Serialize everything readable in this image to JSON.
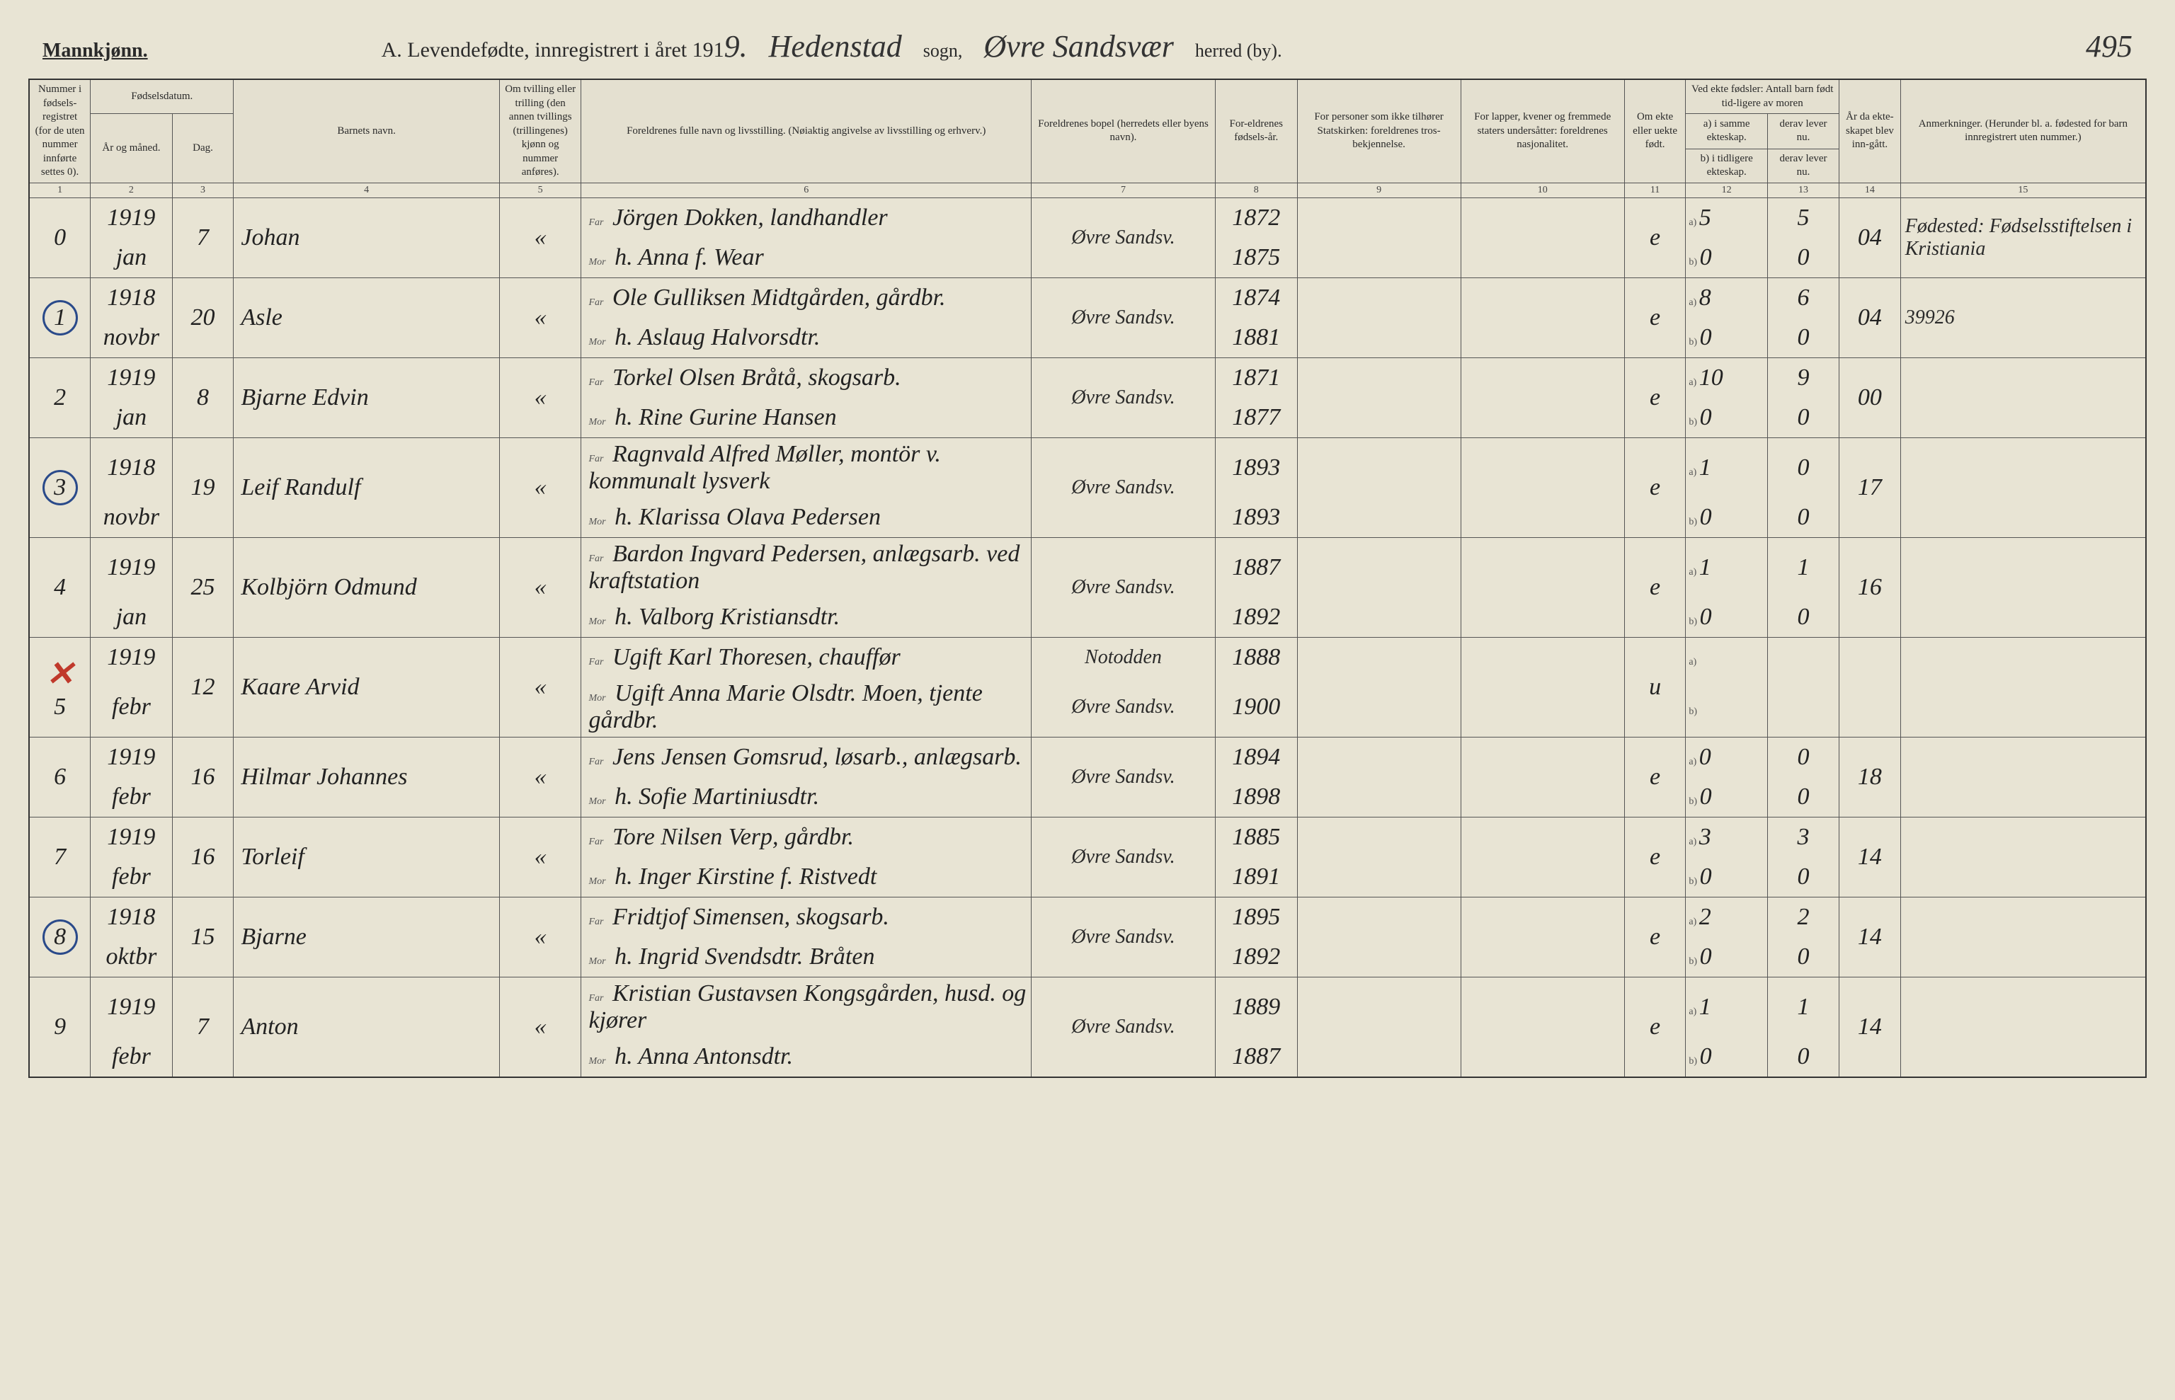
{
  "header": {
    "left_label": "Mannkjønn.",
    "center_title_prefix": "A.  Levendefødte, innregistrert i året 191",
    "year_digit": "9.",
    "sogn_name": "Hedenstad",
    "sogn_label": "sogn,",
    "herred_name": "Øvre Sandsvær",
    "herred_label": "herred (by).",
    "page_number": "495"
  },
  "columns": {
    "c1": "Nummer i fødsels-registret (for de uten nummer innførte settes 0).",
    "c2_top": "Fødselsdatum.",
    "c2a": "År og måned.",
    "c2b": "Dag.",
    "c4": "Barnets navn.",
    "c5": "Om tvilling eller trilling (den annen tvillings (trillingenes) kjønn og nummer anføres).",
    "c6": "Foreldrenes fulle navn og livsstilling. (Nøiaktig angivelse av livsstilling og erhverv.)",
    "c7": "Foreldrenes bopel (herredets eller byens navn).",
    "c8": "For-eldrenes fødsels-år.",
    "c9": "For personer som ikke tilhører Statskirken: foreldrenes tros-bekjennelse.",
    "c10": "For lapper, kvener og fremmede staters undersåtter: foreldrenes nasjonalitet.",
    "c11": "Om ekte eller uekte født.",
    "c12_top": "Ved ekte fødsler: Antall barn født tid-ligere av moren",
    "c12a": "a) i samme ekteskap.",
    "c12b": "b) i tidligere ekteskap.",
    "c13a": "derav lever nu.",
    "c13b": "derav lever nu.",
    "c14": "År da ekte-skapet blev inn-gått.",
    "c15": "Anmerkninger. (Herunder bl. a. fødested for barn innregistrert uten nummer.)"
  },
  "colnums": [
    "1",
    "2",
    "3",
    "4",
    "5",
    "6",
    "7",
    "8",
    "9",
    "10",
    "11",
    "12",
    "13",
    "14",
    "15"
  ],
  "rows": [
    {
      "num": "0",
      "circled": false,
      "red_x": false,
      "year": "1919",
      "month": "jan",
      "day": "7",
      "name": "Johan",
      "twin": "«",
      "far": "Jörgen Dokken, landhandler",
      "mor": "h. Anna f. Wear",
      "bopel": "Øvre Sandsv.",
      "far_year": "1872",
      "mor_year": "1875",
      "c9": "",
      "c10": "",
      "ekte": "e",
      "a12": "5",
      "a13": "5",
      "b12": "0",
      "b13": "0",
      "c14": "04",
      "anm": "Fødested: Fødselsstiftelsen i Kristiania"
    },
    {
      "num": "1",
      "circled": true,
      "red_x": false,
      "year": "1918",
      "month": "novbr",
      "day": "20",
      "name": "Asle",
      "twin": "«",
      "far": "Ole Gulliksen Midtgården, gårdbr.",
      "mor": "h. Aslaug Halvorsdtr.",
      "bopel": "Øvre Sandsv.",
      "far_year": "1874",
      "mor_year": "1881",
      "c9": "",
      "c10": "",
      "ekte": "e",
      "a12": "8",
      "a13": "6",
      "b12": "0",
      "b13": "0",
      "c14": "04",
      "anm": "39926"
    },
    {
      "num": "2",
      "circled": false,
      "red_x": false,
      "year": "1919",
      "month": "jan",
      "day": "8",
      "name": "Bjarne Edvin",
      "twin": "«",
      "far": "Torkel Olsen Bråtå, skogsarb.",
      "mor": "h. Rine Gurine Hansen",
      "bopel": "Øvre Sandsv.",
      "far_year": "1871",
      "mor_year": "1877",
      "c9": "",
      "c10": "",
      "ekte": "e",
      "a12": "10",
      "a13": "9",
      "b12": "0",
      "b13": "0",
      "c14": "00",
      "anm": ""
    },
    {
      "num": "3",
      "circled": true,
      "red_x": false,
      "year": "1918",
      "month": "novbr",
      "day": "19",
      "name": "Leif Randulf",
      "twin": "«",
      "far": "Ragnvald Alfred Møller, montör v. kommunalt lysverk",
      "mor": "h. Klarissa Olava Pedersen",
      "bopel": "Øvre Sandsv.",
      "far_year": "1893",
      "mor_year": "1893",
      "c9": "",
      "c10": "",
      "ekte": "e",
      "a12": "1",
      "a13": "0",
      "b12": "0",
      "b13": "0",
      "c14": "17",
      "anm": ""
    },
    {
      "num": "4",
      "circled": false,
      "red_x": false,
      "year": "1919",
      "month": "jan",
      "day": "25",
      "name": "Kolbjörn Odmund",
      "twin": "«",
      "far": "Bardon Ingvard Pedersen, anlægsarb. ved kraftstation",
      "mor": "h. Valborg Kristiansdtr.",
      "bopel": "Øvre Sandsv.",
      "far_year": "1887",
      "mor_year": "1892",
      "c9": "",
      "c10": "",
      "ekte": "e",
      "a12": "1",
      "a13": "1",
      "b12": "0",
      "b13": "0",
      "c14": "16",
      "anm": ""
    },
    {
      "num": "5",
      "circled": false,
      "red_x": true,
      "year": "1919",
      "month": "febr",
      "day": "12",
      "name": "Kaare Arvid",
      "twin": "«",
      "far": "Ugift Karl Thoresen, chauffør",
      "mor": "Ugift Anna Marie Olsdtr. Moen, tjente gårdbr.",
      "bopel": "Notodden",
      "bopel2": "Øvre Sandsv.",
      "far_year": "1888",
      "mor_year": "1900",
      "c9": "",
      "c10": "",
      "ekte": "u",
      "a12": "",
      "a13": "",
      "b12": "",
      "b13": "",
      "c14": "",
      "anm": ""
    },
    {
      "num": "6",
      "circled": false,
      "red_x": false,
      "year": "1919",
      "month": "febr",
      "day": "16",
      "name": "Hilmar Johannes",
      "twin": "«",
      "far": "Jens Jensen Gomsrud, løsarb., anlægsarb.",
      "mor": "h. Sofie Martiniusdtr.",
      "bopel": "Øvre Sandsv.",
      "far_year": "1894",
      "mor_year": "1898",
      "c9": "",
      "c10": "",
      "ekte": "e",
      "a12": "0",
      "a13": "0",
      "b12": "0",
      "b13": "0",
      "c14": "18",
      "anm": ""
    },
    {
      "num": "7",
      "circled": false,
      "red_x": false,
      "year": "1919",
      "month": "febr",
      "day": "16",
      "name": "Torleif",
      "twin": "«",
      "far": "Tore Nilsen Verp, gårdbr.",
      "mor": "h. Inger Kirstine f. Ristvedt",
      "bopel": "Øvre Sandsv.",
      "far_year": "1885",
      "mor_year": "1891",
      "c9": "",
      "c10": "",
      "ekte": "e",
      "a12": "3",
      "a13": "3",
      "b12": "0",
      "b13": "0",
      "c14": "14",
      "anm": ""
    },
    {
      "num": "8",
      "circled": true,
      "red_x": false,
      "year": "1918",
      "month": "oktbr",
      "day": "15",
      "name": "Bjarne",
      "twin": "«",
      "far": "Fridtjof Simensen, skogsarb.",
      "mor": "h. Ingrid Svendsdtr. Bråten",
      "bopel": "Øvre Sandsv.",
      "far_year": "1895",
      "mor_year": "1892",
      "c9": "",
      "c10": "",
      "ekte": "e",
      "a12": "2",
      "a13": "2",
      "b12": "0",
      "b13": "0",
      "c14": "14",
      "anm": ""
    },
    {
      "num": "9",
      "circled": false,
      "red_x": false,
      "year": "1919",
      "month": "febr",
      "day": "7",
      "name": "Anton",
      "twin": "«",
      "far": "Kristian Gustavsen Kongsgården, husd. og kjører",
      "mor": "h. Anna Antonsdtr.",
      "bopel": "Øvre Sandsv.",
      "far_year": "1889",
      "mor_year": "1887",
      "c9": "",
      "c10": "",
      "ekte": "e",
      "a12": "1",
      "a13": "1",
      "b12": "0",
      "b13": "0",
      "c14": "14",
      "anm": ""
    }
  ],
  "labels": {
    "far": "Far",
    "mor": "Mor",
    "a": "a)",
    "b": "b)"
  }
}
